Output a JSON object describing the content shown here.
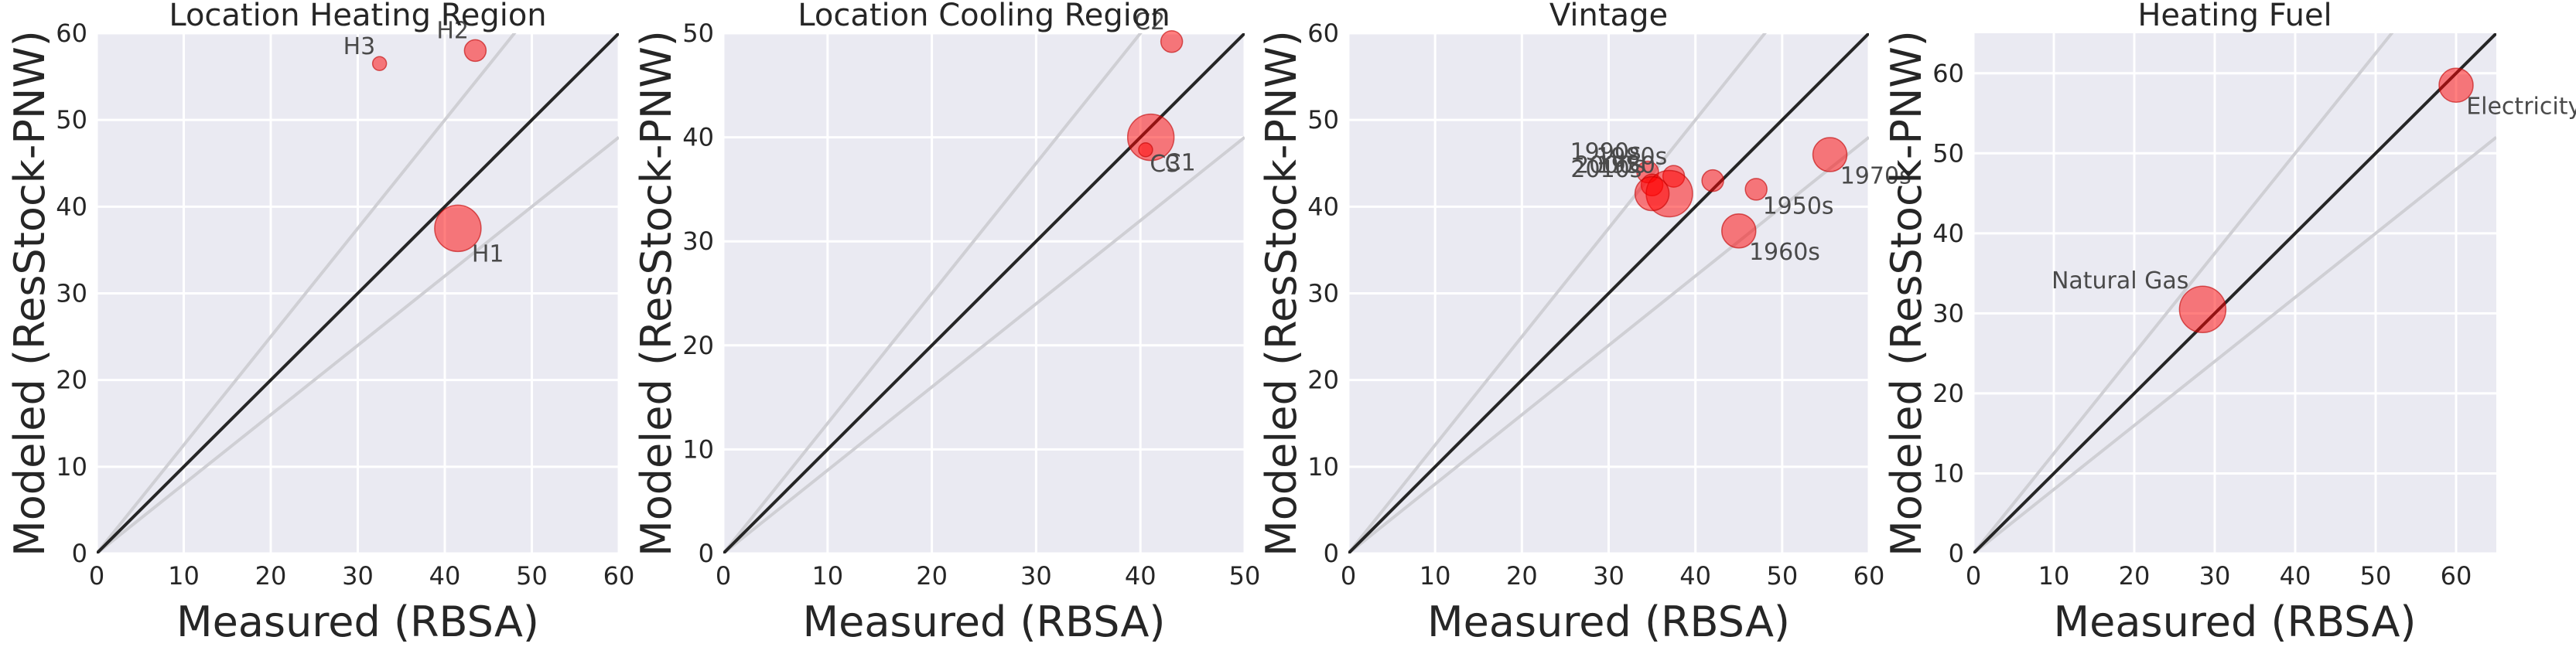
{
  "chart_data": [
    {
      "type": "scatter",
      "title": "Location Heating Region",
      "xlabel": "Measured (RBSA)",
      "ylabel": "Modeled (ResStock-PNW)",
      "xlim": [
        0,
        60
      ],
      "ylim": [
        0,
        60
      ],
      "xticks": [
        0,
        10,
        20,
        30,
        40,
        50,
        60
      ],
      "yticks": [
        0,
        10,
        20,
        30,
        40,
        50,
        60
      ],
      "reference_lines": [
        "y = x",
        "y = 1.25x",
        "y = 0.8x"
      ],
      "grid": true,
      "points": [
        {
          "label": "H1",
          "x": 41.5,
          "y": 37.5,
          "size": "large",
          "label_pos": "below-right"
        },
        {
          "label": "H2",
          "x": 43.5,
          "y": 58.0,
          "size": "small",
          "label_pos": "above-left"
        },
        {
          "label": "H3",
          "x": 32.5,
          "y": 56.5,
          "size": "tiny",
          "label_pos": "above-left"
        }
      ]
    },
    {
      "type": "scatter",
      "title": "Location Cooling Region",
      "xlabel": "Measured (RBSA)",
      "ylabel": "Modeled (ResStock-PNW)",
      "xlim": [
        0,
        50
      ],
      "ylim": [
        0,
        50
      ],
      "xticks": [
        0,
        10,
        20,
        30,
        40,
        50
      ],
      "yticks": [
        0,
        10,
        20,
        30,
        40,
        50
      ],
      "reference_lines": [
        "y = x",
        "y = 1.25x",
        "y = 0.8x"
      ],
      "grid": true,
      "points": [
        {
          "label": "C1",
          "x": 41.0,
          "y": 40.0,
          "size": "large",
          "label_pos": "below-right"
        },
        {
          "label": "C2",
          "x": 43.0,
          "y": 49.2,
          "size": "small",
          "label_pos": "above-left"
        },
        {
          "label": "C3",
          "x": 40.5,
          "y": 38.8,
          "size": "tiny",
          "label_pos": "below-right"
        }
      ]
    },
    {
      "type": "scatter",
      "title": "Vintage",
      "xlabel": "Measured (RBSA)",
      "ylabel": "Modeled (ResStock-PNW)",
      "xlim": [
        0,
        60
      ],
      "ylim": [
        0,
        60
      ],
      "xticks": [
        0,
        10,
        20,
        30,
        40,
        50,
        60
      ],
      "yticks": [
        0,
        10,
        20,
        30,
        40,
        50,
        60
      ],
      "reference_lines": [
        "y = x",
        "y = 1.25x",
        "y = 0.8x"
      ],
      "grid": true,
      "points": [
        {
          "label": "1970s",
          "x": 55.5,
          "y": 46.0,
          "size": "medium",
          "label_pos": "below-right"
        },
        {
          "label": "1950s",
          "x": 47.0,
          "y": 42.0,
          "size": "small",
          "label_pos": "below-right"
        },
        {
          "label": "1960s",
          "x": 45.0,
          "y": 37.2,
          "size": "medium",
          "label_pos": "below-right"
        },
        {
          "label": "1990s",
          "x": 34.5,
          "y": 44.0,
          "size": "small",
          "label_pos": "above-left"
        },
        {
          "label": "1980s",
          "x": 37.5,
          "y": 43.5,
          "size": "small",
          "label_pos": "above-left"
        },
        {
          "label": "2000s",
          "x": 35.0,
          "y": 42.5,
          "size": "small",
          "label_pos": "above-left"
        },
        {
          "label": "1950",
          "x": 37.0,
          "y": 41.5,
          "size": "large",
          "label_pos": "above-left"
        },
        {
          "label": "2010s",
          "x": 35.0,
          "y": 41.5,
          "size": "medium",
          "label_pos": "above-left"
        },
        {
          "label": "",
          "x": 42.0,
          "y": 43.0,
          "size": "small",
          "label_pos": "none"
        }
      ]
    },
    {
      "type": "scatter",
      "title": "Heating Fuel",
      "xlabel": "Measured (RBSA)",
      "ylabel": "Modeled (ResStock-PNW)",
      "xlim": [
        0,
        65
      ],
      "ylim": [
        0,
        65
      ],
      "xticks": [
        0,
        10,
        20,
        30,
        40,
        50,
        60
      ],
      "yticks": [
        0,
        10,
        20,
        30,
        40,
        50,
        60
      ],
      "reference_lines": [
        "y = x",
        "y = 1.25x",
        "y = 0.8x"
      ],
      "grid": true,
      "points": [
        {
          "label": "Electricity",
          "x": 60.0,
          "y": 58.5,
          "size": "medium",
          "label_pos": "below-right"
        },
        {
          "label": "Natural Gas",
          "x": 28.5,
          "y": 30.5,
          "size": "large",
          "label_pos": "above-left"
        }
      ]
    }
  ],
  "style": {
    "plot_background": "#eaeaf2",
    "grid_color": "#ffffff",
    "identity_line_color": "#262626",
    "band_line_color": "#cfcfd4",
    "point_fill": "#ff0000",
    "point_opacity": 0.5,
    "point_stroke": "#c00000"
  }
}
